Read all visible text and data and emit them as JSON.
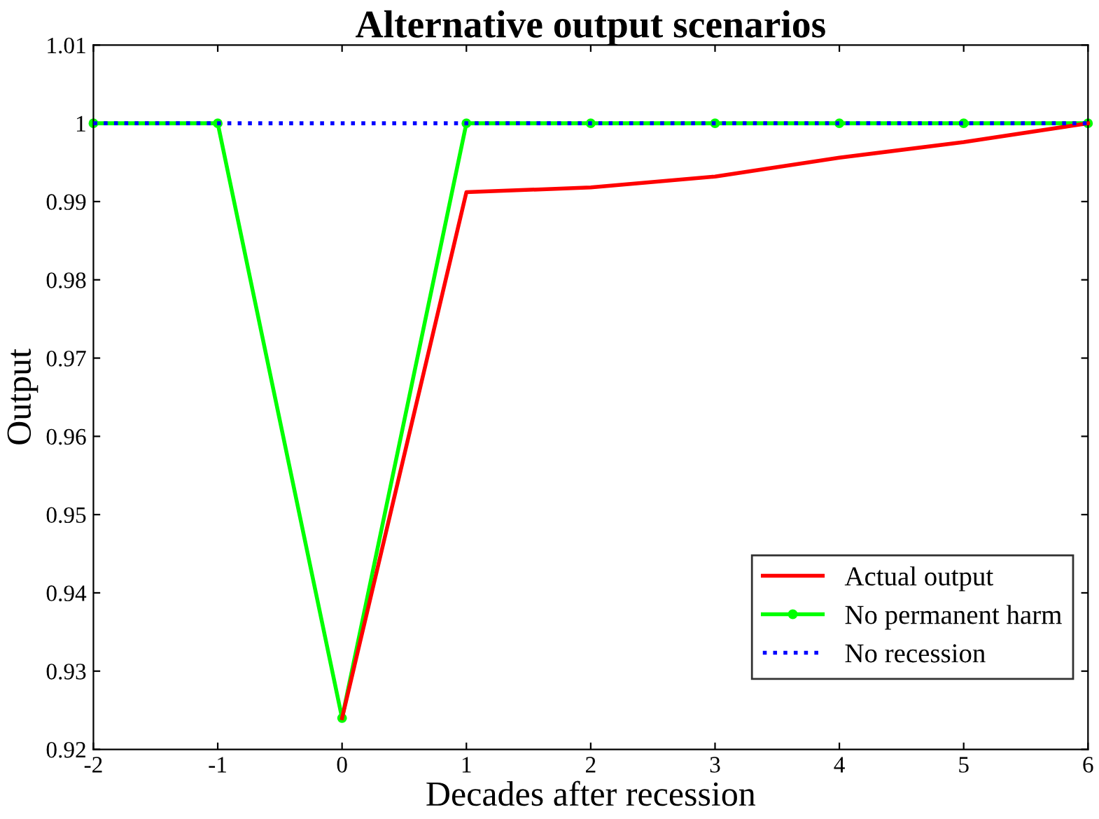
{
  "chart_data": {
    "type": "line",
    "title": "Alternative output scenarios",
    "xlabel": "Decades after recession",
    "ylabel": "Output",
    "xlim": [
      -2,
      6
    ],
    "xticks": [
      -2,
      -1,
      0,
      1,
      2,
      3,
      4,
      5,
      6
    ],
    "ylim": [
      0.92,
      1.01
    ],
    "yticks": [
      0.92,
      0.93,
      0.94,
      0.95,
      0.96,
      0.97,
      0.98,
      0.99,
      1,
      1.01
    ],
    "grid": false,
    "legend": "bottom right",
    "series": [
      {
        "name": "Actual output",
        "color": "#ff0000",
        "x": [
          0,
          1,
          2,
          3,
          4,
          5,
          6
        ],
        "values": [
          0.924,
          0.9912,
          0.9918,
          0.9932,
          0.9956,
          0.9976,
          1
        ],
        "line_style": "solid",
        "marker": "none"
      },
      {
        "name": "No permanent harm",
        "color": "#00ff00",
        "x": [
          -2,
          -1,
          0,
          1,
          2,
          3,
          4,
          5,
          6
        ],
        "values": [
          1,
          1,
          0.924,
          1,
          1,
          1,
          1,
          1,
          1
        ],
        "line_style": "solid",
        "marker": "circle"
      },
      {
        "name": "No recession",
        "color": "#0000ff",
        "x": [
          -2,
          -1,
          0,
          1,
          2,
          3,
          4,
          5,
          6
        ],
        "values": [
          1,
          1,
          1,
          1,
          1,
          1,
          1,
          1,
          1
        ],
        "line_style": "dotted",
        "marker": "none"
      }
    ]
  }
}
